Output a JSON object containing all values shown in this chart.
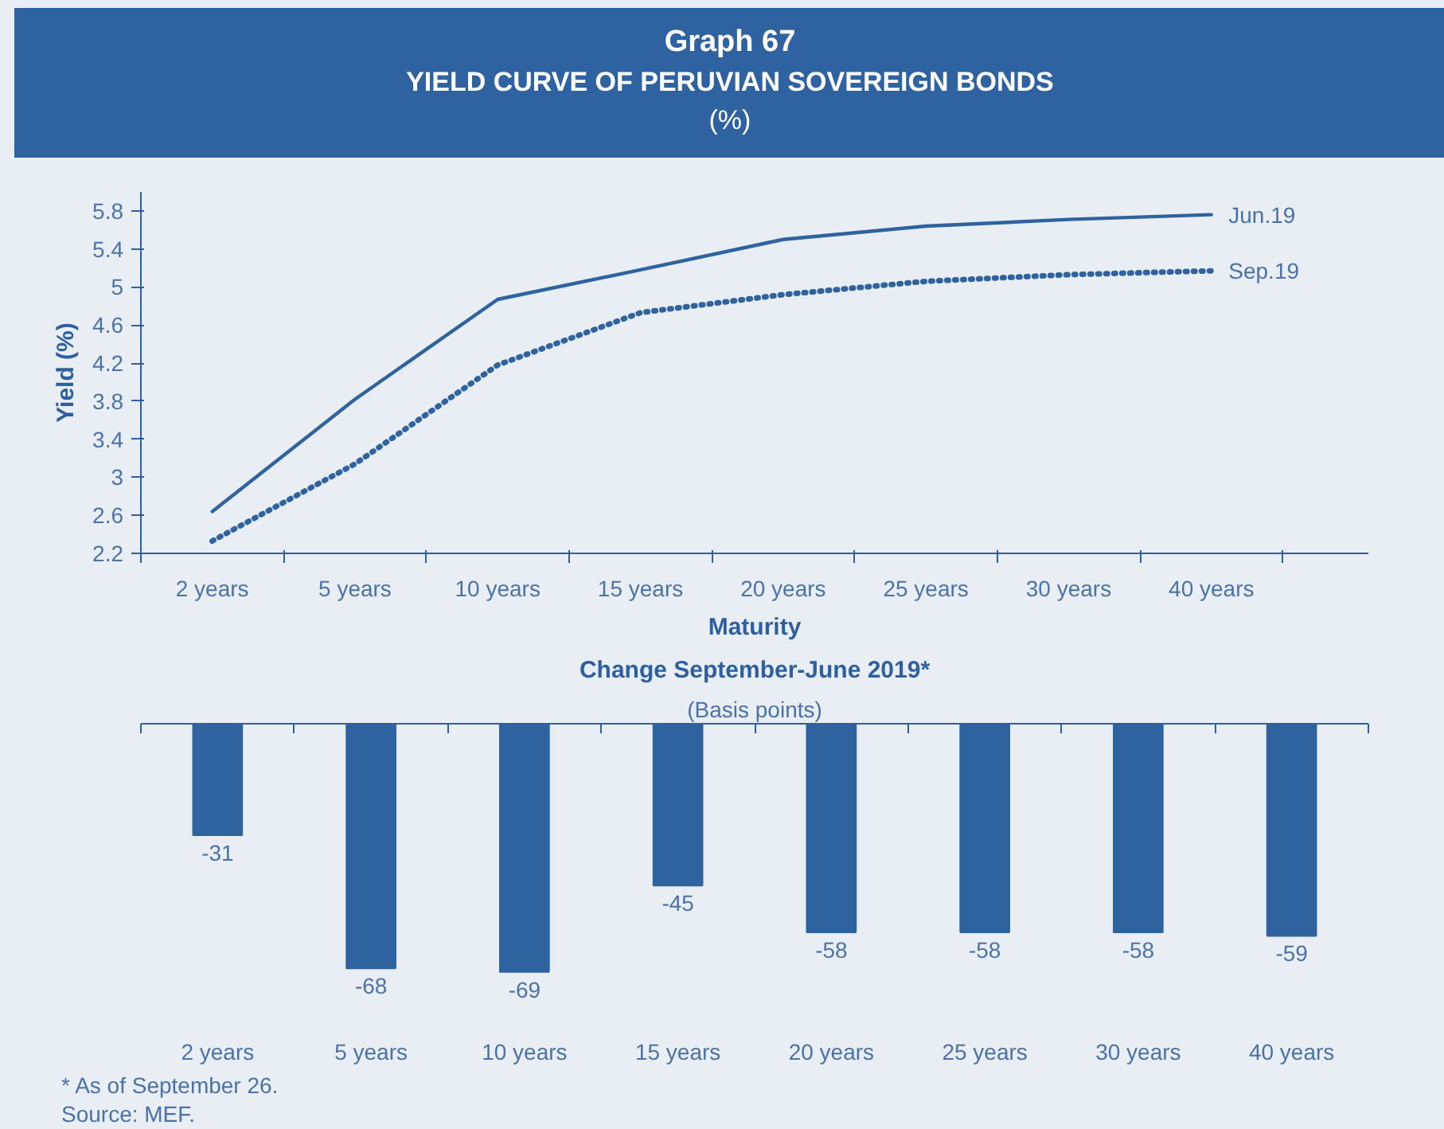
{
  "chart_data": [
    {
      "type": "line",
      "title": "Graph 67",
      "subtitle": "YIELD CURVE OF PERUVIAN SOVEREIGN BONDS\n(%)",
      "xlabel": "Maturity",
      "ylabel": "Yield (%)",
      "categories": [
        "2 years",
        "5 years",
        "10 years",
        "15 years",
        "20 years",
        "25 years",
        "30 years",
        "40 years"
      ],
      "series": [
        {
          "name": "Jun.19",
          "color": "#2e63a0",
          "line_style": "solid",
          "values": [
            2.64,
            3.82,
            4.87,
            5.18,
            5.5,
            5.64,
            5.71,
            5.76
          ]
        },
        {
          "name": "Sep.19",
          "color": "#2e63a0",
          "line_style": "dotted",
          "values": [
            2.33,
            3.14,
            4.18,
            4.73,
            4.92,
            5.06,
            5.13,
            5.17
          ]
        }
      ],
      "ylim": [
        2.2,
        6.0
      ],
      "yticks": [
        2.2,
        2.6,
        3.0,
        3.4,
        3.8,
        4.2,
        4.6,
        5.0,
        5.4,
        5.8
      ],
      "grid": false,
      "legend": false,
      "marker": "none"
    },
    {
      "type": "bar",
      "title": "Change September-June 2019*",
      "subtitle": "(Basis points)",
      "categories": [
        "2 years",
        "5 years",
        "10 years",
        "15 years",
        "20 years",
        "25 years",
        "30 years",
        "40 years"
      ],
      "values": [
        -31,
        -68,
        -69,
        -45,
        -58,
        -58,
        -58,
        -59
      ],
      "color": "#2e63a0",
      "data_labels": true,
      "grid": false,
      "annotations": [
        "* As of September 26.",
        "Source: MEF."
      ]
    }
  ]
}
